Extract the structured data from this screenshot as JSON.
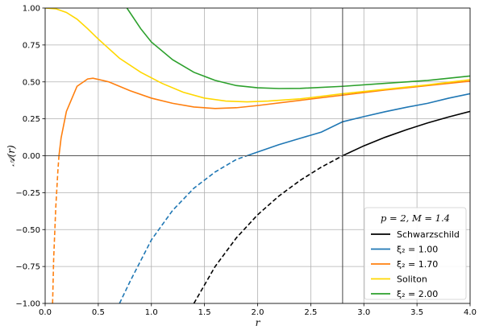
{
  "chart_data": {
    "type": "line",
    "xlabel": "r",
    "ylabel": "𝒜(r)",
    "xlim": [
      0.0,
      4.0
    ],
    "ylim": [
      -1.0,
      1.0
    ],
    "xticks": [
      "0.0",
      "0.5",
      "1.0",
      "1.5",
      "2.0",
      "2.5",
      "3.0",
      "3.5",
      "4.0"
    ],
    "yticks": [
      "−1.00",
      "−0.75",
      "−0.50",
      "−0.25",
      "0.00",
      "0.25",
      "0.50",
      "0.75",
      "1.00"
    ],
    "grid": true,
    "horizon_line_r": 2.8,
    "legend": {
      "placement": "lower-right",
      "title": "p = 2,    M = 1.4",
      "entries": [
        {
          "label": "Schwarzschild",
          "color": "#000000"
        },
        {
          "label": "ξ₂ = 1.00",
          "color": "#1f77b4"
        },
        {
          "label": "ξ₂ = 1.70",
          "color": "#ff7f0e"
        },
        {
          "label": "Soliton",
          "color": "#ffd700"
        },
        {
          "label": "ξ₂ = 2.00",
          "color": "#2ca02c"
        }
      ]
    },
    "series": [
      {
        "name": "Schwarzschild",
        "color": "#000000",
        "dashed": [
          [
            1.4,
            -1.0
          ],
          [
            1.6,
            -0.75
          ],
          [
            1.8,
            -0.556
          ],
          [
            2.0,
            -0.4
          ],
          [
            2.2,
            -0.273
          ],
          [
            2.4,
            -0.167
          ],
          [
            2.6,
            -0.077
          ],
          [
            2.8,
            0.0
          ]
        ],
        "solid": [
          [
            2.8,
            0.0
          ],
          [
            3.0,
            0.067
          ],
          [
            3.2,
            0.125
          ],
          [
            3.4,
            0.176
          ],
          [
            3.6,
            0.222
          ],
          [
            3.8,
            0.263
          ],
          [
            4.0,
            0.3
          ]
        ]
      },
      {
        "name": "ξ₂ = 1.00",
        "color": "#1f77b4",
        "dashed": [
          [
            0.7,
            -1.0
          ],
          [
            0.8,
            -0.85
          ],
          [
            1.0,
            -0.57
          ],
          [
            1.2,
            -0.37
          ],
          [
            1.4,
            -0.22
          ],
          [
            1.6,
            -0.11
          ],
          [
            1.8,
            -0.025
          ],
          [
            1.9,
            0.0
          ]
        ],
        "solid": [
          [
            1.9,
            0.0
          ],
          [
            2.0,
            0.025
          ],
          [
            2.2,
            0.075
          ],
          [
            2.4,
            0.118
          ],
          [
            2.6,
            0.16
          ],
          [
            2.8,
            0.23
          ],
          [
            3.0,
            0.265
          ],
          [
            3.2,
            0.298
          ],
          [
            3.4,
            0.328
          ],
          [
            3.6,
            0.355
          ],
          [
            3.8,
            0.39
          ],
          [
            4.0,
            0.42
          ]
        ]
      },
      {
        "name": "ξ₂ = 1.70",
        "color": "#ff7f0e",
        "dashed": [
          [
            0.07,
            -1.0
          ],
          [
            0.08,
            -0.7
          ],
          [
            0.1,
            -0.35
          ],
          [
            0.12,
            -0.1
          ],
          [
            0.13,
            0.0
          ]
        ],
        "solid": [
          [
            0.13,
            0.0
          ],
          [
            0.15,
            0.12
          ],
          [
            0.2,
            0.3
          ],
          [
            0.3,
            0.47
          ],
          [
            0.4,
            0.52
          ],
          [
            0.45,
            0.525
          ],
          [
            0.6,
            0.5
          ],
          [
            0.8,
            0.44
          ],
          [
            1.0,
            0.39
          ],
          [
            1.2,
            0.355
          ],
          [
            1.4,
            0.33
          ],
          [
            1.6,
            0.32
          ],
          [
            1.8,
            0.325
          ],
          [
            2.0,
            0.34
          ],
          [
            2.4,
            0.375
          ],
          [
            2.8,
            0.41
          ],
          [
            3.2,
            0.445
          ],
          [
            3.6,
            0.475
          ],
          [
            4.0,
            0.505
          ]
        ]
      },
      {
        "name": "Soliton",
        "color": "#ffd700",
        "solid": [
          [
            0.0,
            1.0
          ],
          [
            0.1,
            0.995
          ],
          [
            0.2,
            0.97
          ],
          [
            0.3,
            0.925
          ],
          [
            0.4,
            0.86
          ],
          [
            0.5,
            0.79
          ],
          [
            0.7,
            0.66
          ],
          [
            0.9,
            0.565
          ],
          [
            1.1,
            0.49
          ],
          [
            1.3,
            0.43
          ],
          [
            1.5,
            0.39
          ],
          [
            1.7,
            0.37
          ],
          [
            1.9,
            0.365
          ],
          [
            2.1,
            0.37
          ],
          [
            2.4,
            0.385
          ],
          [
            2.8,
            0.42
          ],
          [
            3.2,
            0.45
          ],
          [
            3.6,
            0.48
          ],
          [
            4.0,
            0.515
          ]
        ]
      },
      {
        "name": "ξ₂ = 2.00",
        "color": "#2ca02c",
        "solid": [
          [
            0.77,
            1.0
          ],
          [
            0.9,
            0.86
          ],
          [
            1.0,
            0.77
          ],
          [
            1.2,
            0.65
          ],
          [
            1.4,
            0.565
          ],
          [
            1.6,
            0.51
          ],
          [
            1.8,
            0.475
          ],
          [
            2.0,
            0.46
          ],
          [
            2.2,
            0.455
          ],
          [
            2.4,
            0.456
          ],
          [
            2.8,
            0.47
          ],
          [
            3.2,
            0.49
          ],
          [
            3.6,
            0.51
          ],
          [
            4.0,
            0.54
          ]
        ]
      }
    ]
  }
}
